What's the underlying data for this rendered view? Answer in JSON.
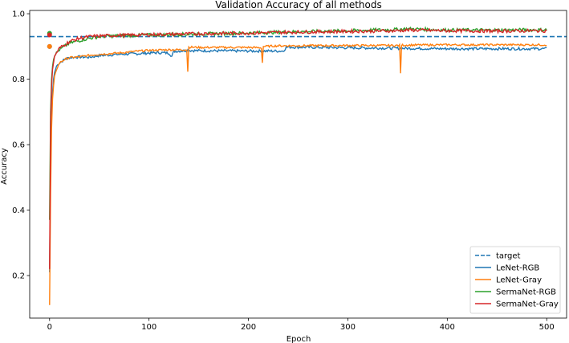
{
  "chart_data": {
    "type": "line",
    "title": "Validation Accuracy of all methods",
    "xlabel": "Epoch",
    "ylabel": "Accuracy",
    "xlim": [
      -20,
      520
    ],
    "ylim": [
      0.07,
      1.01
    ],
    "xticks": [
      0,
      100,
      200,
      300,
      400,
      500
    ],
    "yticks": [
      0.2,
      0.4,
      0.6,
      0.8,
      1.0
    ],
    "ytick_labels": [
      "0.2",
      "0.4",
      "0.6",
      "0.8",
      "1.0"
    ],
    "grid": false,
    "legend_position": "bottom-right",
    "target": {
      "name": "target",
      "value": 0.93,
      "color": "#1f77b4",
      "style": "dashed"
    },
    "series": [
      {
        "name": "LeNet-RGB",
        "color": "#1f77b4",
        "marker_start": 0.9,
        "x": [
          0,
          1,
          2,
          3,
          4,
          5,
          7,
          10,
          15,
          20,
          30,
          40,
          50,
          60,
          70,
          80,
          90,
          100,
          110,
          120,
          123,
          125,
          130,
          135,
          138,
          139,
          140,
          150,
          200,
          235,
          238,
          240,
          300,
          400,
          500
        ],
        "y": [
          0.21,
          0.55,
          0.7,
          0.76,
          0.8,
          0.82,
          0.84,
          0.85,
          0.86,
          0.866,
          0.868,
          0.867,
          0.872,
          0.874,
          0.876,
          0.877,
          0.878,
          0.88,
          0.881,
          0.88,
          0.87,
          0.885,
          0.886,
          0.887,
          0.887,
          0.889,
          0.888,
          0.887,
          0.886,
          0.886,
          0.897,
          0.898,
          0.896,
          0.893,
          0.893
        ]
      },
      {
        "name": "LeNet-Gray",
        "color": "#ff7f0e",
        "marker_start": 0.9,
        "x": [
          0,
          1,
          2,
          3,
          4,
          5,
          7,
          10,
          15,
          20,
          30,
          40,
          50,
          60,
          70,
          80,
          90,
          100,
          110,
          120,
          130,
          138,
          139,
          140,
          150,
          200,
          213,
          214,
          215,
          230,
          300,
          352,
          353,
          354,
          400,
          500
        ],
        "y": [
          0.11,
          0.45,
          0.65,
          0.74,
          0.78,
          0.81,
          0.83,
          0.85,
          0.86,
          0.866,
          0.868,
          0.873,
          0.876,
          0.878,
          0.88,
          0.883,
          0.886,
          0.888,
          0.889,
          0.89,
          0.89,
          0.89,
          0.823,
          0.898,
          0.897,
          0.897,
          0.896,
          0.85,
          0.9,
          0.902,
          0.903,
          0.903,
          0.818,
          0.904,
          0.905,
          0.905
        ]
      },
      {
        "name": "SermaNet-RGB",
        "color": "#2ca02c",
        "marker_start": 0.94,
        "x": [
          0,
          1,
          2,
          3,
          4,
          5,
          7,
          10,
          15,
          20,
          30,
          40,
          50,
          70,
          100,
          150,
          200,
          250,
          300,
          350,
          360,
          400,
          450,
          500
        ],
        "y": [
          0.37,
          0.7,
          0.8,
          0.84,
          0.86,
          0.87,
          0.88,
          0.89,
          0.9,
          0.91,
          0.918,
          0.925,
          0.93,
          0.933,
          0.935,
          0.938,
          0.941,
          0.945,
          0.948,
          0.952,
          0.954,
          0.95,
          0.95,
          0.951
        ]
      },
      {
        "name": "SermaNet-Gray",
        "color": "#d62728",
        "marker_start": 0.935,
        "x": [
          0,
          1,
          2,
          3,
          4,
          5,
          7,
          10,
          15,
          20,
          30,
          40,
          50,
          70,
          100,
          150,
          200,
          250,
          300,
          350,
          360,
          400,
          450,
          500
        ],
        "y": [
          0.22,
          0.66,
          0.78,
          0.83,
          0.85,
          0.87,
          0.88,
          0.895,
          0.905,
          0.915,
          0.925,
          0.93,
          0.932,
          0.934,
          0.936,
          0.939,
          0.941,
          0.944,
          0.946,
          0.948,
          0.95,
          0.948,
          0.947,
          0.948
        ]
      }
    ]
  }
}
